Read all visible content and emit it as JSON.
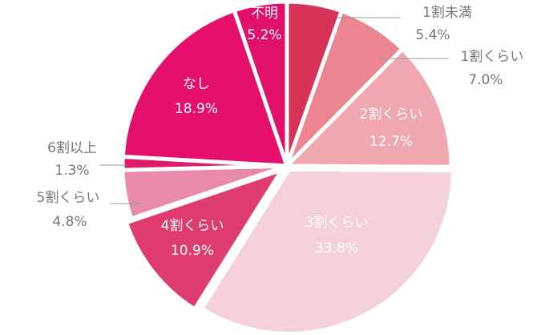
{
  "chart_data": {
    "type": "pie",
    "start": "12 o'clock",
    "direction": "clockwise",
    "slices": [
      {
        "label": "1割未満",
        "value": 5.4,
        "display": "5.4%",
        "color": "#d93258",
        "label_position": "outside"
      },
      {
        "label": "1割くらい",
        "value": 7.0,
        "display": "7.0%",
        "color": "#ec8591",
        "label_position": "outside"
      },
      {
        "label": "2割くらい",
        "value": 12.7,
        "display": "12.7%",
        "color": "#f0a7af",
        "label_position": "inside"
      },
      {
        "label": "3割くらい",
        "value": 33.8,
        "display": "33.8%",
        "color": "#f4d1d9",
        "label_position": "inside"
      },
      {
        "label": "4割くらい",
        "value": 10.9,
        "display": "10.9%",
        "color": "#de3c6d",
        "label_position": "inside"
      },
      {
        "label": "5割くらい",
        "value": 4.8,
        "display": "4.8%",
        "color": "#e98aab",
        "label_position": "outside"
      },
      {
        "label": "6割以上",
        "value": 1.3,
        "display": "1.3%",
        "color": "#e01a6d",
        "label_position": "outside"
      },
      {
        "label": "なし",
        "value": 18.9,
        "display": "18.9%",
        "color": "#e5106e",
        "label_position": "inside"
      },
      {
        "label": "不明",
        "value": 5.2,
        "display": "5.2%",
        "color": "#e1106c",
        "label_position": "inside"
      }
    ]
  }
}
